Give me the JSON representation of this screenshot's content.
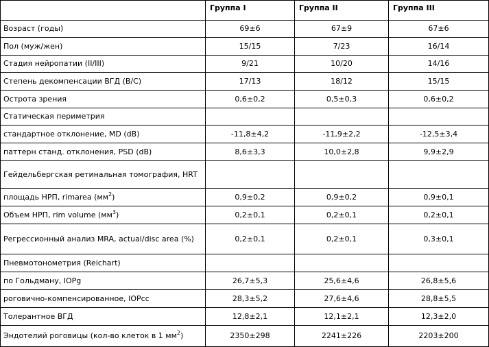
{
  "header": {
    "col1": "Группа I",
    "col2": "Группа II",
    "col3": "Группа III"
  },
  "rows": [
    {
      "label": "Возраст (годы)",
      "v1": "69±6",
      "v2": "67±9",
      "v3": "67±6"
    },
    {
      "label": "Пол (муж/жен)",
      "v1": "15/15",
      "v2": "7/23",
      "v3": "16/14"
    },
    {
      "label": "Стадия нейропатии (II/III)",
      "v1": "9/21",
      "v2": "10/20",
      "v3": "14/16"
    },
    {
      "label": "Степень декомпенсации ВГД (В/С)",
      "v1": "17/13",
      "v2": "18/12",
      "v3": "15/15"
    },
    {
      "label": "Острота зрения",
      "v1": "0,6±0,2",
      "v2": "0,5±0,3",
      "v3": "0,6±0,2"
    },
    {
      "label": "Статическая периметрия",
      "v1": "",
      "v2": "",
      "v3": ""
    },
    {
      "label": "стандартное отклонение, MD (dB)",
      "v1": "-11,8±4,2",
      "v2": "-11,9±2,2",
      "v3": "-12,5±3,4"
    },
    {
      "label": "паттерн станд. отклонения, PSD (dB)",
      "v1": "8,6±3,3",
      "v2": "10,0±2,8",
      "v3": "9,9±2,9"
    },
    {
      "label": "Гейдельбергская ретинальная томография, HRT",
      "v1": "",
      "v2": "",
      "v3": ""
    },
    {
      "label": "площадь НРП, rimarea (мм",
      "sup": "2",
      "label_end": ")",
      "v1": "0,9±0,2",
      "v2": "0,9±0,2",
      "v3": "0,9±0,1"
    },
    {
      "label": "Объем НРП, rim volume (мм",
      "sup": "3",
      "label_end": ")",
      "v1": "0,2±0,1",
      "v2": "0,2±0,1",
      "v3": "0,2±0,1"
    },
    {
      "label": "Регрессионный анализ MRA, actual/disc area (%)",
      "v1": "0,2±0,1",
      "v2": "0,2±0,1",
      "v3": "0,3±0,1"
    },
    {
      "label": "Пневмотонометрия (Reichart)",
      "v1": "",
      "v2": "",
      "v3": ""
    },
    {
      "label": "по Гольдману, IOPg",
      "v1": "26,7±5,3",
      "v2": "25,6±4,6",
      "v3": "26,8±5,6"
    },
    {
      "label": "роговично-компенсированное, IOPcc",
      "v1": "28,3±5,2",
      "v2": "27,6±4,6",
      "v3": "28,8±5,5"
    },
    {
      "label": "Толерантное ВГД",
      "v1": "12,8±2,1",
      "v2": "12,1±2,1",
      "v3": "12,3±2,0"
    },
    {
      "label": "Эндотелий роговицы (кол-во клеток в 1 мм",
      "sup": "2",
      "label_end": ")",
      "v1": "2350±298",
      "v2": "2241±226",
      "v3": "2203±200"
    }
  ]
}
